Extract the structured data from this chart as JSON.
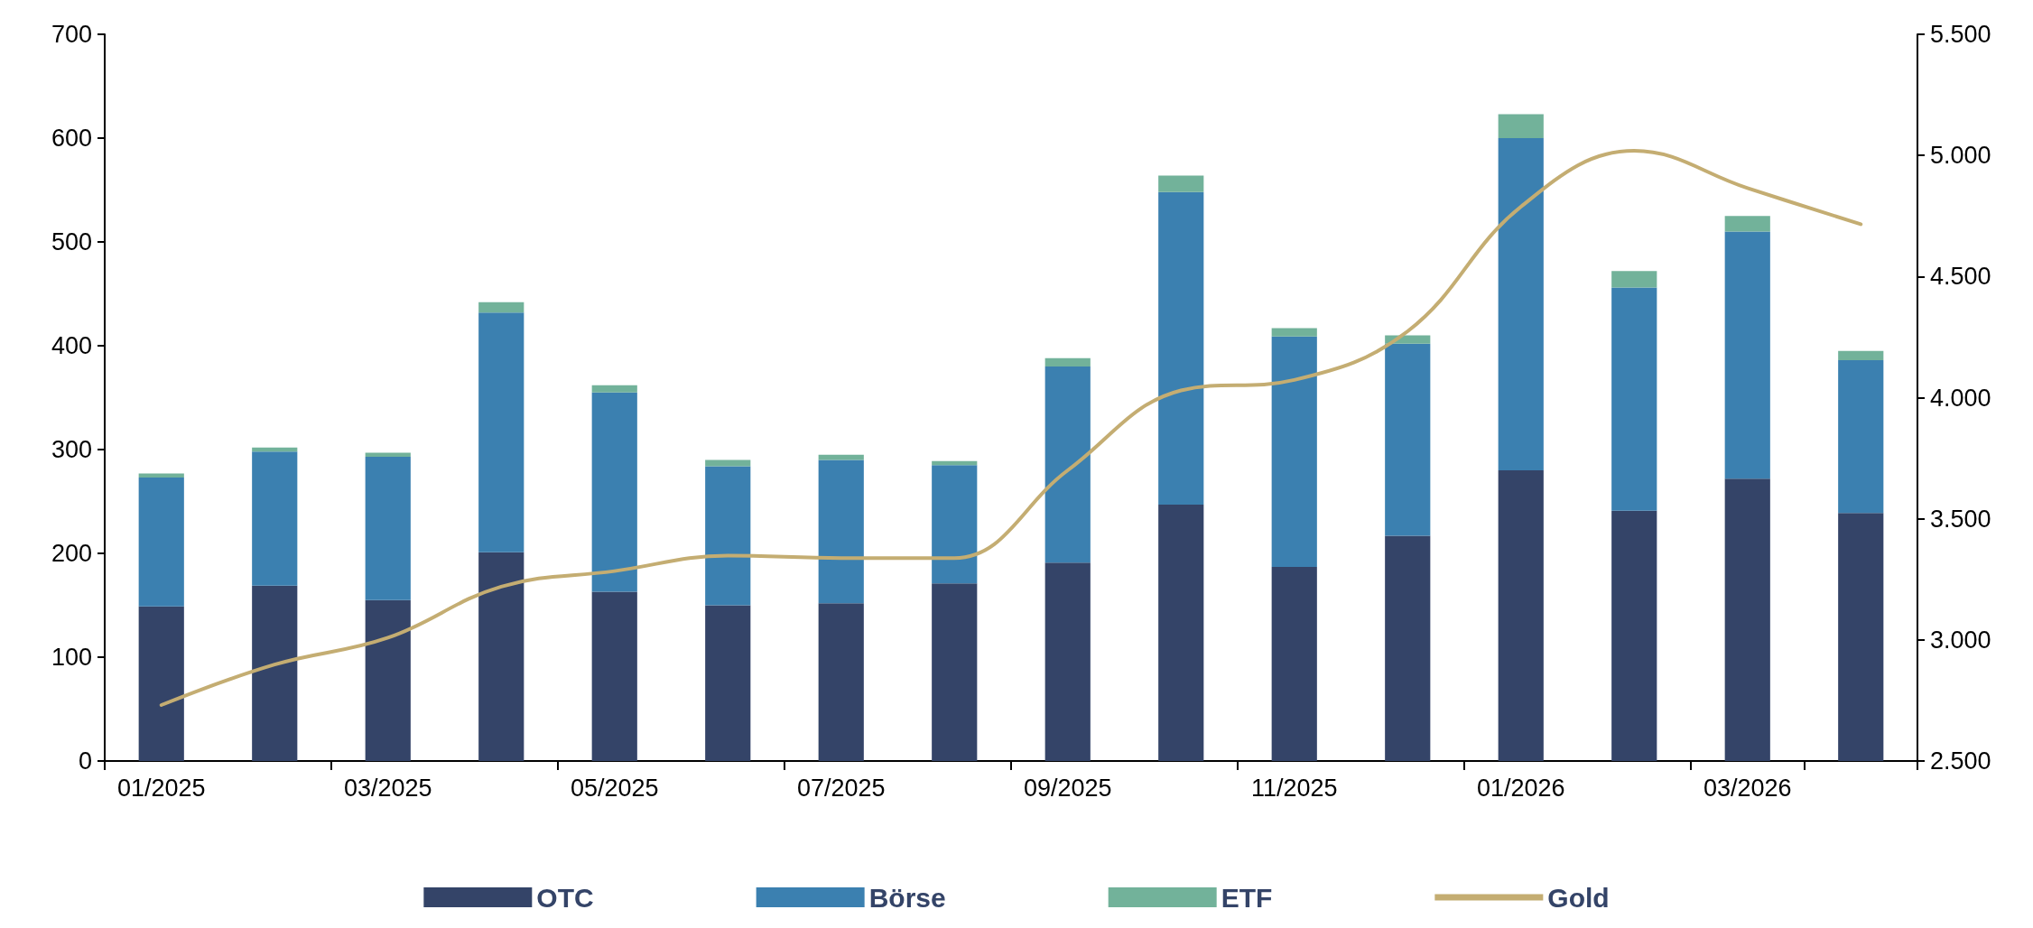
{
  "chart_data": {
    "type": "bar",
    "stacked": true,
    "categories": [
      "01/2025",
      null,
      "03/2025",
      null,
      "05/2025",
      null,
      "07/2025",
      null,
      "09/2025",
      null,
      "11/2025",
      null,
      "01/2026",
      null,
      "03/2026",
      null
    ],
    "series": [
      {
        "name": "OTC",
        "color": "#344468",
        "values": [
          149,
          169,
          155,
          201,
          163,
          150,
          152,
          171,
          191,
          247,
          187,
          217,
          280,
          241,
          272,
          239
        ]
      },
      {
        "name": "Börse",
        "color": "#3b80b0",
        "values": [
          124,
          129,
          138,
          231,
          192,
          134,
          138,
          114,
          189,
          301,
          222,
          185,
          320,
          215,
          238,
          147
        ]
      },
      {
        "name": "ETF",
        "color": "#72b29a",
        "values": [
          4,
          4,
          4,
          10,
          7,
          6,
          5,
          4,
          8,
          16,
          8,
          8,
          23,
          16,
          15,
          9
        ]
      },
      {
        "name": "Gold",
        "type": "line",
        "axis": "y2",
        "color": "#c4ad72",
        "values": [
          2731,
          2898,
          3009,
          3220,
          3284,
          3348,
          3338,
          3338,
          3700,
          4030,
          4073,
          4274,
          4788,
          5019,
          4865,
          4716
        ]
      }
    ],
    "ylim": [
      0,
      700
    ],
    "yticks": [
      0,
      100,
      200,
      300,
      400,
      500,
      600,
      700
    ],
    "y2lim": [
      2500,
      5500
    ],
    "y2ticks": [
      {
        "value": 2500,
        "label": "2.500"
      },
      {
        "value": 3000,
        "label": "3.000"
      },
      {
        "value": 3500,
        "label": "3.500"
      },
      {
        "value": 4000,
        "label": "4.000"
      },
      {
        "value": 4500,
        "label": "4.500"
      },
      {
        "value": 5000,
        "label": "5.000"
      },
      {
        "value": 5500,
        "label": "5.500"
      }
    ],
    "grid": false,
    "legend": "bottom",
    "marker": "none",
    "line_style": "solid"
  }
}
